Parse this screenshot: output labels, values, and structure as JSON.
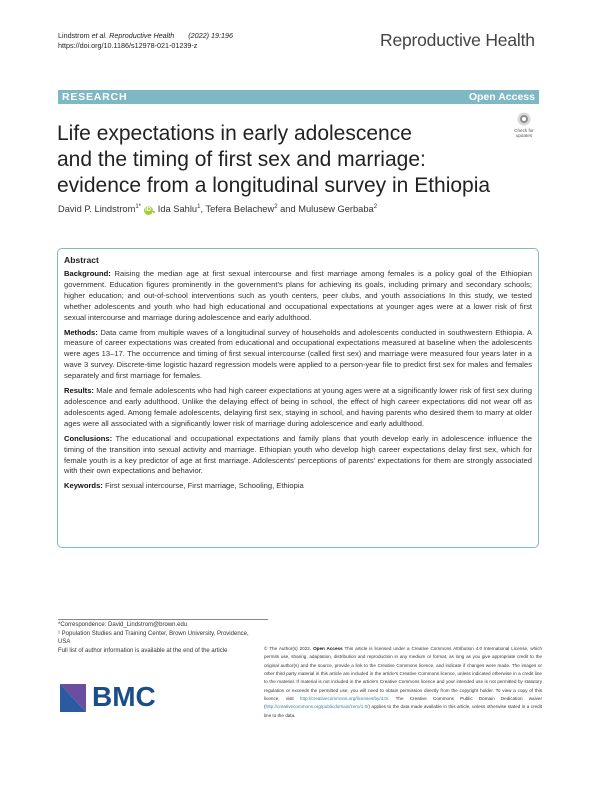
{
  "header": {
    "authors_short": "Lindstrom",
    "etal": "et al. Reproductive Health",
    "year_vol": "(2022) 19:196",
    "doi": "https://doi.org/10.1186/s12978-021-01239-z",
    "journal": "Reproductive Health"
  },
  "banner": {
    "label": "RESEARCH",
    "open_access": "Open Access"
  },
  "title_lines": [
    "Life expectations in early adolescence",
    "and the timing of first sex and marriage:",
    "evidence from a longitudinal survey in Ethiopia"
  ],
  "check_updates": {
    "line1": "Check for",
    "line2": "updates"
  },
  "authors": {
    "a1": "David P. Lindstrom",
    "a1_sup": "1*",
    "a2": "Ida Sahlu",
    "a2_sup": "1",
    "a3": "Tefera Belachew",
    "a3_sup": "2",
    "a4": "Mulusew Gerbaba",
    "a4_sup": "2",
    "sep": ",",
    "and": "and"
  },
  "abstract": {
    "heading": "Abstract",
    "background_label": "Background:",
    "background": "Raising the median age at first sexual intercourse and first marriage among females is a policy goal of the Ethiopian government. Education figures prominently in the government’s plans for achieving its goals, including primary and secondary schools; higher education; and out-of-school interventions such as youth centers, peer clubs, and youth associations In this study, we tested whether adolescents and youth who had high educational and occupational expectations at younger ages were at a lower risk of first sexual intercourse and marriage during adolescence and early adulthood.",
    "methods_label": "Methods:",
    "methods": "Data came from multiple waves of a longitudinal survey of households and adolescents conducted in southwestern Ethiopia. A measure of career expectations was created from educational and occupational expectations measured at baseline when the adolescents were ages 13–17. The occurrence and timing of first sexual intercourse (called first sex) and marriage were measured four years later in a wave 3 survey. Discrete-time logistic hazard regression models were applied to a person-year file to predict first sex for males and females separately and first marriage for females.",
    "results_label": "Results:",
    "results": "Male and female adolescents who had high career expectations at young ages were at a significantly lower risk of first sex during adolescence and early adulthood. Unlike the delaying effect of being in school, the effect of high career expectations did not wear off as adolescents aged. Among female adolescents, delaying first sex, staying in school, and having parents who desired them to marry at older ages were all associated with a significantly lower risk of marriage during adolescence and early adulthood.",
    "conclusions_label": "Conclusions:",
    "conclusions": "The educational and occupational expectations and family plans that youth develop early in adolescence influence the timing of the transition into sexual activity and marriage. Ethiopian youth who develop high career expectations delay first sex, which for female youth is a key predictor of age at first marriage. Adolescents’ perceptions of parents’ expectations for them are strongly associated with their own expectations and behavior.",
    "keywords_label": "Keywords:",
    "keywords": "First sexual intercourse, First marriage, Schooling, Ethiopia"
  },
  "footnotes": {
    "correspondence": "*Correspondence: David_Lindstrom@brown.edu",
    "affil1": "¹ Population Studies and Training Center, Brown University, Providence,",
    "affil1b": "USA",
    "full_list": "Full list of author information is available at the end of the article"
  },
  "publisher": {
    "name": "BMC"
  },
  "license": {
    "lead": "© The Author(s) 2022.",
    "oa": "Open Access",
    "text1": "This article is licensed under a Creative Commons Attribution 4.0 International License, which permits use, sharing, adaptation, distribution and reproduction in any medium or format, as long as you give appropriate credit to the original author(s) and the source, provide a link to the Creative Commons licence, and indicate if changes were made. The images or other third party material in this article are included in the article’s Creative Commons licence, unless indicated otherwise in a credit line to the material. If material is not included in the article’s Creative Commons licence and your intended use is not permitted by statutory regulation or exceeds the permitted use, you will need to obtain permission directly from the copyright holder. To view a copy of this licence, visit",
    "url1": "http://creativecommons.org/licenses/by/4.0/",
    "text2": ". The Creative Commons Public Domain Dedication waiver (",
    "url2": "http://creativecommons.org/publicdomain/zero/1.0/",
    "text3": ") applies to the data made available in this article, unless otherwise stated in a credit line to the data."
  },
  "colors": {
    "accent": "#7fb8c5",
    "bmc_blue": "#1a4e8a"
  }
}
